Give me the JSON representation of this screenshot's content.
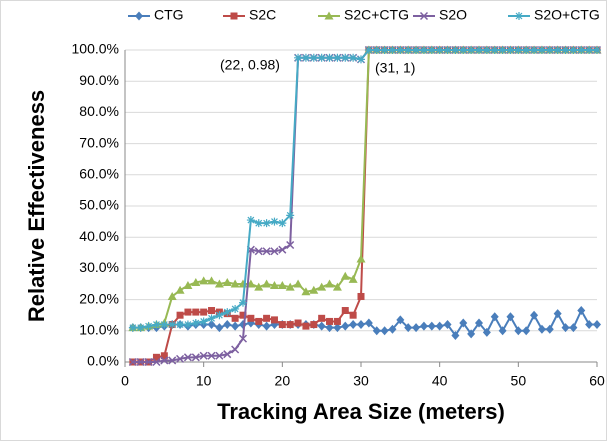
{
  "chart_data": {
    "type": "line",
    "x_label": "Tracking Area Size (meters)",
    "y_label": "Relative Effectiveness",
    "x": [
      1,
      2,
      3,
      4,
      5,
      6,
      7,
      8,
      9,
      10,
      11,
      12,
      13,
      14,
      15,
      16,
      17,
      18,
      19,
      20,
      21,
      22,
      23,
      24,
      25,
      26,
      27,
      28,
      29,
      30,
      31,
      32,
      33,
      34,
      35,
      36,
      37,
      38,
      39,
      40,
      41,
      42,
      43,
      44,
      45,
      46,
      47,
      48,
      49,
      50,
      51,
      52,
      53,
      54,
      55,
      56,
      57,
      58,
      59,
      60
    ],
    "series": [
      {
        "name": "CTG",
        "color": "#4a7ebb",
        "marker": "diamond",
        "values": [
          11,
          11,
          11,
          11,
          11.5,
          12,
          12,
          11.5,
          12,
          12,
          12,
          11,
          12,
          11.5,
          12,
          12.5,
          12,
          11.5,
          12,
          12,
          12,
          12,
          12,
          12,
          11.5,
          11,
          11,
          11.5,
          12,
          12,
          12.5,
          10,
          10,
          10.5,
          13.5,
          11,
          11,
          11.5,
          11.5,
          11.5,
          12,
          8.5,
          12.5,
          9,
          12.5,
          9.5,
          14.5,
          10,
          14.5,
          10,
          10,
          15,
          10.5,
          10.5,
          15.5,
          11,
          11,
          16.5,
          12,
          12
        ]
      },
      {
        "name": "S2C",
        "color": "#be4b48",
        "marker": "square",
        "values": [
          0,
          0,
          0,
          1.5,
          2,
          12,
          15,
          16,
          16,
          16,
          16.5,
          16,
          15.5,
          14,
          15,
          14,
          13,
          14,
          13.5,
          12,
          12,
          12.5,
          11.5,
          12,
          14,
          13,
          13,
          16.5,
          15,
          21,
          100,
          100,
          100,
          100,
          100,
          100,
          100,
          100,
          100,
          100,
          100,
          100,
          100,
          100,
          100,
          100,
          100,
          100,
          100,
          100,
          100,
          100,
          100,
          100,
          100,
          100,
          100,
          100,
          100,
          100
        ]
      },
      {
        "name": "S2C+CTG",
        "color": "#98b954",
        "marker": "triangle",
        "values": [
          11,
          11,
          11.5,
          12,
          12.5,
          21,
          23,
          24.5,
          25.5,
          26,
          26,
          25,
          25.5,
          25,
          25,
          25,
          24,
          25,
          24.5,
          24.5,
          24,
          25,
          22.5,
          23,
          24,
          25,
          24,
          27.5,
          26.5,
          33,
          100,
          100,
          100,
          100,
          100,
          100,
          100,
          100,
          100,
          100,
          100,
          100,
          100,
          100,
          100,
          100,
          100,
          100,
          100,
          100,
          100,
          100,
          100,
          100,
          100,
          100,
          100,
          100,
          100,
          100
        ]
      },
      {
        "name": "S2O",
        "color": "#7d60a0",
        "marker": "x",
        "values": [
          0,
          0,
          0,
          0,
          0.5,
          0.5,
          1,
          1.5,
          1.5,
          2,
          2,
          2,
          2.5,
          4,
          7.5,
          36,
          35.5,
          35.5,
          35.5,
          36,
          37.5,
          97.5,
          97.5,
          97.5,
          97.5,
          97.5,
          97.5,
          97.5,
          97.5,
          97,
          100,
          100,
          100,
          100,
          100,
          100,
          100,
          100,
          100,
          100,
          100,
          100,
          100,
          100,
          100,
          100,
          100,
          100,
          100,
          100,
          100,
          100,
          100,
          100,
          100,
          100,
          100,
          100,
          100,
          100
        ]
      },
      {
        "name": "S2O+CTG",
        "color": "#46aac5",
        "marker": "star",
        "values": [
          11,
          11,
          11.5,
          12,
          12,
          12,
          12,
          12,
          12.5,
          13,
          14,
          15,
          16,
          17,
          19,
          45.5,
          44.5,
          44.5,
          45,
          44.5,
          47,
          97.5,
          97.5,
          97.5,
          97.5,
          97.5,
          97.5,
          97.5,
          97.5,
          97,
          100,
          100,
          100,
          100,
          100,
          100,
          100,
          100,
          100,
          100,
          100,
          100,
          100,
          100,
          100,
          100,
          100,
          100,
          100,
          100,
          100,
          100,
          100,
          100,
          100,
          100,
          100,
          100,
          100,
          100
        ]
      }
    ],
    "annotations": [
      "(22, 0.98)",
      "(31, 1)"
    ],
    "xlim": [
      0,
      60
    ],
    "xticks": [
      0,
      10,
      20,
      30,
      40,
      50,
      60
    ],
    "ylim": [
      0,
      100
    ],
    "yticks": [
      {
        "value": 0,
        "label": "0.0%"
      },
      {
        "value": 10,
        "label": "10.0%"
      },
      {
        "value": 20,
        "label": "20.0%"
      },
      {
        "value": 30,
        "label": "30.0%"
      },
      {
        "value": 40,
        "label": "40.0%"
      },
      {
        "value": 50,
        "label": "50.0%"
      },
      {
        "value": 60,
        "label": "60.0%"
      },
      {
        "value": 70,
        "label": "70.0%"
      },
      {
        "value": 80,
        "label": "80.0%"
      },
      {
        "value": 90,
        "label": "90.0%"
      },
      {
        "value": 100,
        "label": "100.0%"
      }
    ],
    "grid": true,
    "legend": "top"
  }
}
